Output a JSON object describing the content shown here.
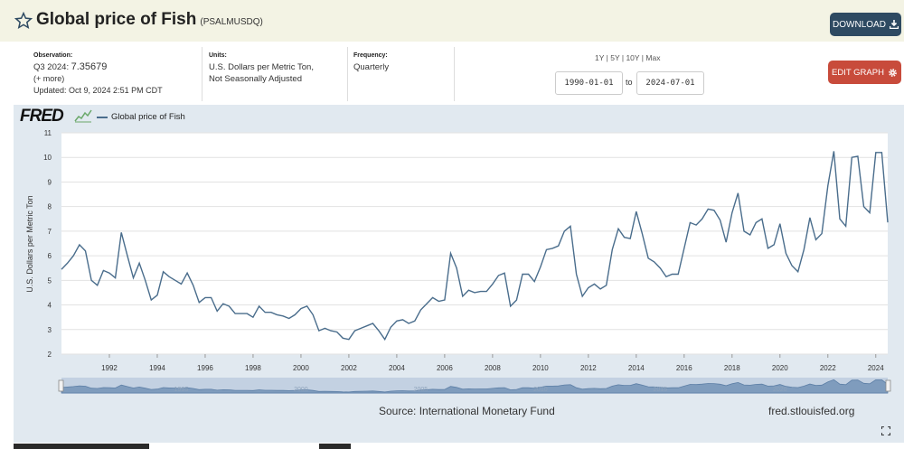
{
  "header": {
    "title": "Global price of Fish",
    "series_code": "(PSALMUSDQ)",
    "download_label": "DOWNLOAD"
  },
  "observation": {
    "label": "Observation:",
    "period": "Q3 2024:",
    "value": "7.35679",
    "more": "(+ more)",
    "updated": "Updated: Oct 9, 2024 2:51 PM CDT"
  },
  "units": {
    "label": "Units:",
    "line1": "U.S. Dollars per Metric Ton,",
    "line2": "Not Seasonally Adjusted"
  },
  "frequency": {
    "label": "Frequency:",
    "value": "Quarterly"
  },
  "range": {
    "opt_1y": "1Y",
    "opt_5y": "5Y",
    "opt_10y": "10Y",
    "opt_max": "Max",
    "sep": "|",
    "start": "1990-01-01",
    "to": "to",
    "end": "2024-07-01"
  },
  "edit_label": "EDIT GRAPH",
  "logo_text": "FRED",
  "footer": {
    "source": "Source: International Monetary Fund",
    "site": "fred.stlouisfed.org"
  },
  "colors": {
    "line": "#4a6d8c",
    "header_bg": "#f3f3e4",
    "download_btn": "#2e4a62",
    "edit_btn": "#c84b3b",
    "chart_bg": "#e1e9f0"
  },
  "icons": [
    "star-icon",
    "download-icon",
    "gear-icon",
    "fred-logo-sparkline-icon",
    "fullscreen-icon"
  ],
  "chart_data": {
    "type": "line",
    "legend": "Global price of Fish",
    "ylabel": "U.S. Dollars per Metric Ton",
    "xlabel": "",
    "ylim": [
      2,
      11
    ],
    "yticks": [
      "2",
      "3",
      "4",
      "5",
      "6",
      "7",
      "8",
      "9",
      "10",
      "11"
    ],
    "xlim": [
      1990.0,
      2024.5
    ],
    "xticks": [
      "1992",
      "1994",
      "1996",
      "1998",
      "2000",
      "2002",
      "2004",
      "2006",
      "2008",
      "2010",
      "2012",
      "2014",
      "2016",
      "2018",
      "2020",
      "2022",
      "2024"
    ],
    "navigator_ticks": [
      "1995",
      "2000",
      "2005",
      "2010",
      "2015",
      "2020"
    ],
    "grid": true,
    "legend_position": "top-left",
    "series": [
      {
        "name": "Global price of Fish",
        "x": [
          "1990-01-01",
          "1990-04-01",
          "1990-07-01",
          "1990-10-01",
          "1991-01-01",
          "1991-04-01",
          "1991-07-01",
          "1991-10-01",
          "1992-01-01",
          "1992-04-01",
          "1992-07-01",
          "1992-10-01",
          "1993-01-01",
          "1993-04-01",
          "1993-07-01",
          "1993-10-01",
          "1994-01-01",
          "1994-04-01",
          "1994-07-01",
          "1994-10-01",
          "1995-01-01",
          "1995-04-01",
          "1995-07-01",
          "1995-10-01",
          "1996-01-01",
          "1996-04-01",
          "1996-07-01",
          "1996-10-01",
          "1997-01-01",
          "1997-04-01",
          "1997-07-01",
          "1997-10-01",
          "1998-01-01",
          "1998-04-01",
          "1998-07-01",
          "1998-10-01",
          "1999-01-01",
          "1999-04-01",
          "1999-07-01",
          "1999-10-01",
          "2000-01-01",
          "2000-04-01",
          "2000-07-01",
          "2000-10-01",
          "2001-01-01",
          "2001-04-01",
          "2001-07-01",
          "2001-10-01",
          "2002-01-01",
          "2002-04-01",
          "2002-07-01",
          "2002-10-01",
          "2003-01-01",
          "2003-04-01",
          "2003-07-01",
          "2003-10-01",
          "2004-01-01",
          "2004-04-01",
          "2004-07-01",
          "2004-10-01",
          "2005-01-01",
          "2005-04-01",
          "2005-07-01",
          "2005-10-01",
          "2006-01-01",
          "2006-04-01",
          "2006-07-01",
          "2006-10-01",
          "2007-01-01",
          "2007-04-01",
          "2007-07-01",
          "2007-10-01",
          "2008-01-01",
          "2008-04-01",
          "2008-07-01",
          "2008-10-01",
          "2009-01-01",
          "2009-04-01",
          "2009-07-01",
          "2009-10-01",
          "2010-01-01",
          "2010-04-01",
          "2010-07-01",
          "2010-10-01",
          "2011-01-01",
          "2011-04-01",
          "2011-07-01",
          "2011-10-01",
          "2012-01-01",
          "2012-04-01",
          "2012-07-01",
          "2012-10-01",
          "2013-01-01",
          "2013-04-01",
          "2013-07-01",
          "2013-10-01",
          "2014-01-01",
          "2014-04-01",
          "2014-07-01",
          "2014-10-01",
          "2015-01-01",
          "2015-04-01",
          "2015-07-01",
          "2015-10-01",
          "2016-01-01",
          "2016-04-01",
          "2016-07-01",
          "2016-10-01",
          "2017-01-01",
          "2017-04-01",
          "2017-07-01",
          "2017-10-01",
          "2018-01-01",
          "2018-04-01",
          "2018-07-01",
          "2018-10-01",
          "2019-01-01",
          "2019-04-01",
          "2019-07-01",
          "2019-10-01",
          "2020-01-01",
          "2020-04-01",
          "2020-07-01",
          "2020-10-01",
          "2021-01-01",
          "2021-04-01",
          "2021-07-01",
          "2021-10-01",
          "2022-01-01",
          "2022-04-01",
          "2022-07-01",
          "2022-10-01",
          "2023-01-01",
          "2023-04-01",
          "2023-07-01",
          "2023-10-01",
          "2024-01-01",
          "2024-04-01",
          "2024-07-01"
        ],
        "values": [
          5.45,
          5.7,
          6.0,
          6.45,
          6.2,
          5.0,
          4.8,
          5.4,
          5.3,
          5.1,
          6.95,
          6.0,
          5.1,
          5.7,
          5.0,
          4.2,
          4.4,
          5.35,
          5.15,
          5.0,
          4.85,
          5.3,
          4.8,
          4.1,
          4.3,
          4.3,
          3.75,
          4.05,
          3.95,
          3.65,
          3.65,
          3.65,
          3.5,
          3.95,
          3.7,
          3.7,
          3.6,
          3.55,
          3.45,
          3.6,
          3.85,
          3.95,
          3.6,
          2.95,
          3.05,
          2.95,
          2.9,
          2.65,
          2.6,
          2.95,
          3.05,
          3.15,
          3.25,
          2.95,
          2.6,
          3.1,
          3.35,
          3.4,
          3.25,
          3.35,
          3.8,
          4.05,
          4.3,
          4.15,
          4.2,
          6.1,
          5.5,
          4.35,
          4.6,
          4.5,
          4.55,
          4.55,
          4.85,
          5.2,
          5.3,
          3.95,
          4.2,
          5.25,
          5.25,
          4.95,
          5.55,
          6.25,
          6.3,
          6.4,
          7.0,
          7.2,
          5.25,
          4.35,
          4.7,
          4.85,
          4.65,
          4.8,
          6.25,
          7.1,
          6.75,
          6.7,
          7.8,
          6.9,
          5.9,
          5.75,
          5.5,
          5.15,
          5.25,
          5.25,
          6.3,
          7.35,
          7.25,
          7.5,
          7.9,
          7.85,
          7.45,
          6.55,
          7.75,
          8.55,
          7.0,
          6.85,
          7.35,
          7.5,
          6.3,
          6.45,
          7.3,
          6.1,
          5.6,
          5.35,
          6.25,
          7.55,
          6.65,
          6.9,
          8.85,
          10.25,
          7.5,
          7.2,
          10.0,
          10.05,
          8.0,
          7.75,
          10.2,
          10.2,
          7.35679
        ]
      }
    ]
  }
}
